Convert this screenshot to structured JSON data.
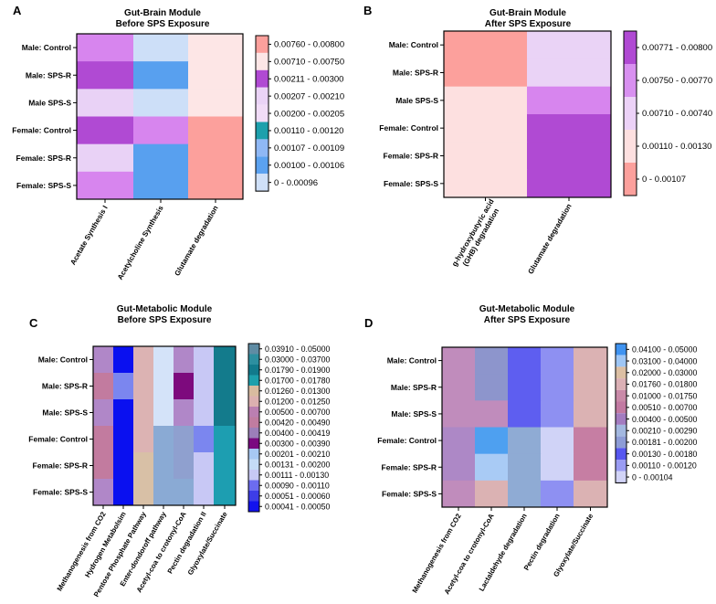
{
  "chart_data": [
    {
      "type": "heatmap",
      "panel": "A",
      "title": [
        "Gut-Brain Module",
        "Before SPS Exposure"
      ],
      "rows": [
        "Male: Control",
        "Male: SPS-R",
        "Male SPS-S",
        "Female: Control",
        "Female: SPS-R",
        "Female: SPS-S"
      ],
      "columns": [
        "Acetate Synthesis I",
        "Acetylcholine Synthesis",
        "Glutamate degradation"
      ],
      "cells": [
        [
          5,
          7,
          1
        ],
        [
          3,
          6,
          1
        ],
        [
          4,
          7,
          1
        ],
        [
          3,
          5,
          0
        ],
        [
          4,
          6,
          0
        ],
        [
          5,
          6,
          0
        ]
      ],
      "legend": [
        {
          "label": "0.00760 - 0.00800",
          "color": "#fca09c"
        },
        {
          "label": "0.00710 - 0.00750",
          "color": "#fde6e6"
        },
        {
          "label": "0.00211 - 0.00300",
          "color": "#b04ad3"
        },
        {
          "label": "0.00207 - 0.00210",
          "color": "#ead3f6"
        },
        {
          "label": "0.00200 - 0.00205",
          "color": "#f1dcf7"
        },
        {
          "label": "0.00110 - 0.00120",
          "color": "#1da0ac"
        },
        {
          "label": "0.00107 - 0.00109",
          "color": "#8fb8f5"
        },
        {
          "label": "0.00100 - 0.00106",
          "color": "#5ba2f0"
        },
        {
          "label": "0 - 0.00096",
          "color": "#cfe0f8"
        }
      ],
      "cell_colors": [
        "#fca09c",
        "#fde6e6",
        "#ead3f6",
        "#b04ad3",
        "#e9d2f6",
        "#d785ee",
        "#58a0ef",
        "#cddff8"
      ]
    },
    {
      "type": "heatmap",
      "panel": "B",
      "title": [
        "Gut-Brain Module",
        "After SPS Exposure"
      ],
      "rows": [
        "Male: Control",
        "Male: SPS-R",
        "Male SPS-S",
        "Female: Control",
        "Female: SPS-R",
        "Female: SPS-S"
      ],
      "columns": [
        "g-hydroxybutyric acid (GHB) degradation",
        "Glutamate degradation"
      ],
      "cells": [
        [
          0,
          1
        ],
        [
          0,
          1
        ],
        [
          2,
          3
        ],
        [
          2,
          4
        ],
        [
          2,
          4
        ],
        [
          2,
          4
        ]
      ],
      "legend": [
        {
          "label": "0.00771 - 0.00800",
          "color": "#b04ad3"
        },
        {
          "label": "0.00750 - 0.00770",
          "color": "#d890f0"
        },
        {
          "label": "0.00710 - 0.00740",
          "color": "#ecd2f7"
        },
        {
          "label": "0.00110 - 0.00130",
          "color": "#fde0e0"
        },
        {
          "label": "0 - 0.00107",
          "color": "#fca09c"
        }
      ],
      "cell_colors": [
        "#fca09c",
        "#ead3f6",
        "#fde0e0",
        "#d785ee",
        "#b04ad3"
      ]
    },
    {
      "type": "heatmap",
      "panel": "C",
      "title": [
        "Gut-Metabolic Module",
        "Before SPS Exposure"
      ],
      "rows": [
        "Male: Control",
        "Male: SPS-R",
        "Male: SPS-S",
        "Female: Control",
        "Female: SPS-R",
        "Female: SPS-S"
      ],
      "columns": [
        "Methanogenesis from CO2",
        "Hydrogen Metabolsim",
        "Pentose Phosphate Pathway",
        "Enter-dondoroff pathway",
        "Acetyl-coa to crotonyl-CoA",
        "Pectin degradation II",
        "Glyoxylate/Succinate"
      ],
      "cells": [
        [
          0,
          8,
          3,
          5,
          0,
          6,
          9
        ],
        [
          2,
          7,
          3,
          5,
          11,
          6,
          9
        ],
        [
          0,
          8,
          3,
          5,
          0,
          6,
          9
        ],
        [
          2,
          8,
          3,
          1,
          10,
          7,
          4
        ],
        [
          2,
          8,
          12,
          1,
          10,
          6,
          4
        ],
        [
          0,
          8,
          12,
          1,
          1,
          6,
          4
        ]
      ],
      "legend": [
        {
          "label": "0.03910 - 0.05000",
          "color": "#5f8ca4"
        },
        {
          "label": "0.03000 - 0.03700",
          "color": "#2d8fa0"
        },
        {
          "label": "0.01790 - 0.01900",
          "color": "#127a8c"
        },
        {
          "label": "0.01700 - 0.01780",
          "color": "#1da0ac"
        },
        {
          "label": "0.01260 - 0.01300",
          "color": "#d8bb9f"
        },
        {
          "label": "0.01200 - 0.01250",
          "color": "#dcb0b0"
        },
        {
          "label": "0.00500 - 0.00700",
          "color": "#bb7fb1"
        },
        {
          "label": "0.00420 - 0.00490",
          "color": "#c07ca0"
        },
        {
          "label": "0.00400 - 0.00419",
          "color": "#9c7fb9"
        },
        {
          "label": "0.00300 - 0.00390",
          "color": "#7a0a80"
        },
        {
          "label": "0.00201 - 0.00210",
          "color": "#a7c8f3"
        },
        {
          "label": "0.00131 - 0.00200",
          "color": "#c4dcf6"
        },
        {
          "label": "0.00111 - 0.00130",
          "color": "#c7c8f5"
        },
        {
          "label": "0.00090 - 0.00110",
          "color": "#6c6cf0"
        },
        {
          "label": "0.00051 - 0.00060",
          "color": "#3d3de8"
        },
        {
          "label": "0.00041 - 0.00050",
          "color": "#1212ee"
        }
      ],
      "cell_colors": [
        "#b087c8",
        "#8aaad4",
        "#c27b9f",
        "#dcb3b3",
        "#1d9eb1",
        "#d4e3f9",
        "#c8c8f5",
        "#7b86ef",
        "#0a10f0",
        "#137b8c",
        "#8fa0cf",
        "#7d0a7d",
        "#d8c0a6"
      ]
    },
    {
      "type": "heatmap",
      "panel": "D",
      "title": [
        "Gut-Metabolic Module",
        "After SPS Exposure"
      ],
      "rows": [
        "Male: Control",
        "Male: SPS-R",
        "Male: SPS-S",
        "Female: Control",
        "Female: SPS-R",
        "Female: SPS-S"
      ],
      "columns": [
        "Methanogenesis from CO2",
        "Acetyl-coa to crotonyl-CoA",
        "Lactaldehyde degradation",
        "Pectin degradation",
        "Glyoxylate/Succinate"
      ],
      "cells": [
        [
          0,
          1,
          2,
          3,
          4
        ],
        [
          0,
          1,
          2,
          3,
          4
        ],
        [
          0,
          0,
          2,
          3,
          4
        ],
        [
          5,
          6,
          7,
          8,
          9
        ],
        [
          5,
          10,
          7,
          8,
          9
        ],
        [
          0,
          4,
          7,
          3,
          4
        ]
      ],
      "legend": [
        {
          "label": "0.04100 - 0.05000",
          "color": "#3f93f0"
        },
        {
          "label": "0.03100 - 0.04000",
          "color": "#9ec6f5"
        },
        {
          "label": "0.02000 - 0.03000",
          "color": "#dcbfa3"
        },
        {
          "label": "0.01760 - 0.01800",
          "color": "#dbb0b5"
        },
        {
          "label": "0.01000 - 0.01750",
          "color": "#c98aa8"
        },
        {
          "label": "0.00510 - 0.00700",
          "color": "#c27aa2"
        },
        {
          "label": "0.00400 - 0.00500",
          "color": "#a37cc0"
        },
        {
          "label": "0.00210 - 0.00290",
          "color": "#a3b8e0"
        },
        {
          "label": "0.00181 - 0.00200",
          "color": "#8d9cd6"
        },
        {
          "label": "0.00130 - 0.00180",
          "color": "#5757ef"
        },
        {
          "label": "0.00110 - 0.00120",
          "color": "#9a9cf3"
        },
        {
          "label": "0 - 0.00104",
          "color": "#d2d4f7"
        }
      ],
      "cell_colors": [
        "#c08cbc",
        "#8d95cc",
        "#5e5ef0",
        "#8e90f2",
        "#dbb2b3",
        "#ad88c6",
        "#4ea0f0",
        "#8fabd4",
        "#d0d3f7",
        "#c67ea3",
        "#a9cbf5"
      ]
    }
  ]
}
